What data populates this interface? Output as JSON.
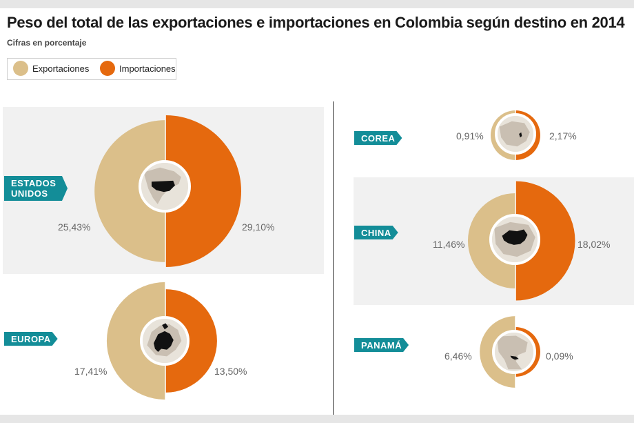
{
  "title": "Peso del total de las exportaciones e importaciones en Colombia según destino en 2014",
  "subtitle": "Cifras en porcentaje",
  "legend": {
    "exports_label": "Exportaciones",
    "imports_label": "Importaciones"
  },
  "colors": {
    "exports": "#dbbf8a",
    "imports": "#e5690e",
    "tag": "#138d98",
    "panel": "#f1f1f1"
  },
  "chart_data": {
    "type": "pie",
    "title": "Peso del total de las exportaciones e importaciones en Colombia según destino en 2014",
    "unit": "%",
    "series_names": [
      "Exportaciones",
      "Importaciones"
    ],
    "countries": [
      {
        "name": "ESTADOS UNIDOS",
        "exports": 25.43,
        "imports": 29.1,
        "exports_label": "25,43%",
        "imports_label": "29,10%",
        "icon": "usa-map-icon"
      },
      {
        "name": "EUROPA",
        "exports": 17.41,
        "imports": 13.5,
        "exports_label": "17,41%",
        "imports_label": "13,50%",
        "icon": "europe-map-icon"
      },
      {
        "name": "COREA",
        "exports": 0.91,
        "imports": 2.17,
        "exports_label": "0,91%",
        "imports_label": "2,17%",
        "icon": "korea-map-icon"
      },
      {
        "name": "CHINA",
        "exports": 11.46,
        "imports": 18.02,
        "exports_label": "11,46%",
        "imports_label": "18,02%",
        "icon": "china-map-icon"
      },
      {
        "name": "PANAMÁ",
        "exports": 6.46,
        "imports": 0.09,
        "exports_label": "6,46%",
        "imports_label": "0,09%",
        "icon": "panama-map-icon"
      }
    ]
  }
}
